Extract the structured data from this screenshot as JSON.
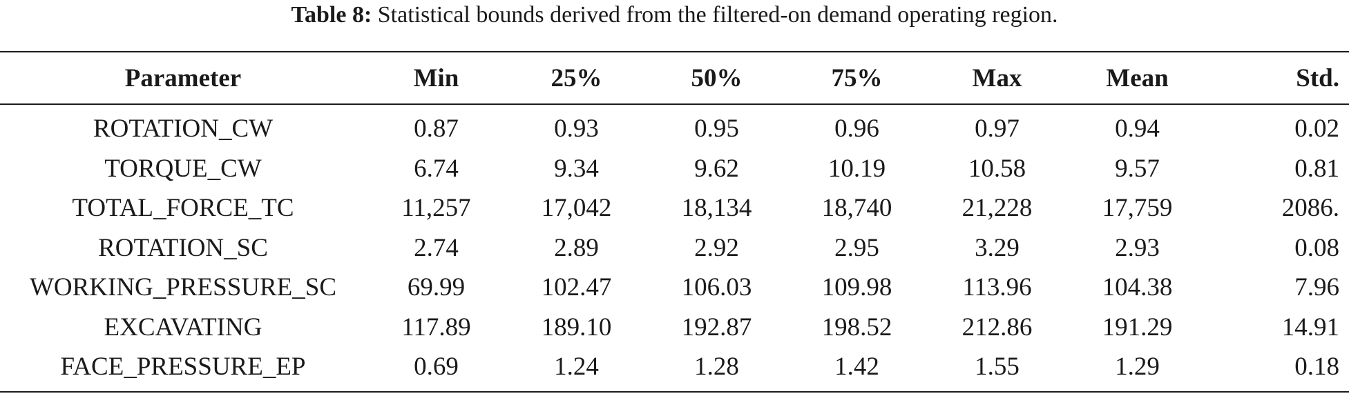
{
  "caption": {
    "label": "Table 8:",
    "text": "Statistical bounds derived from the filtered-on demand operating region."
  },
  "table": {
    "headers": [
      "Parameter",
      "Min",
      "25%",
      "50%",
      "75%",
      "Max",
      "Mean",
      "Std."
    ],
    "rows": [
      [
        "ROTATION_CW",
        "0.87",
        "0.93",
        "0.95",
        "0.96",
        "0.97",
        "0.94",
        "0.02"
      ],
      [
        "TORQUE_CW",
        "6.74",
        "9.34",
        "9.62",
        "10.19",
        "10.58",
        "9.57",
        "0.81"
      ],
      [
        "TOTAL_FORCE_TC",
        "11,257",
        "17,042",
        "18,134",
        "18,740",
        "21,228",
        "17,759",
        "2086."
      ],
      [
        "ROTATION_SC",
        "2.74",
        "2.89",
        "2.92",
        "2.95",
        "3.29",
        "2.93",
        "0.08"
      ],
      [
        "WORKING_PRESSURE_SC",
        "69.99",
        "102.47",
        "106.03",
        "109.98",
        "113.96",
        "104.38",
        "7.96"
      ],
      [
        "EXCAVATING",
        "117.89",
        "189.10",
        "192.87",
        "198.52",
        "212.86",
        "191.29",
        "14.91"
      ],
      [
        "FACE_PRESSURE_EP",
        "0.69",
        "1.24",
        "1.28",
        "1.42",
        "1.55",
        "1.29",
        "0.18"
      ]
    ]
  }
}
